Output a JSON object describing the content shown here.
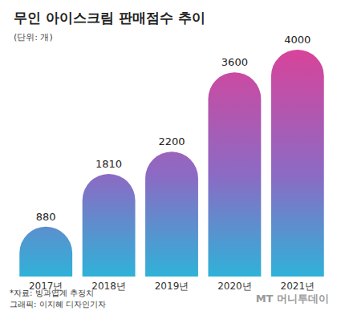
{
  "chart_data": {
    "type": "bar",
    "title": "무인 아이스크림 판매점수 추이",
    "subtitle": "(단위: 개)",
    "categories": [
      "2017년",
      "2018년",
      "2019년",
      "2020년",
      "2021년"
    ],
    "values": [
      880,
      1810,
      2200,
      3600,
      4000
    ],
    "color": "#d8439a",
    "ylim": [
      0,
      4000
    ],
    "grid": false,
    "data_labels": true,
    "tick_labels": "x",
    "source": "*자료: 빙과업계 추정치",
    "credit": "그래픽: 이지혜 디자인기자",
    "watermark": "MT 머니투데이"
  }
}
